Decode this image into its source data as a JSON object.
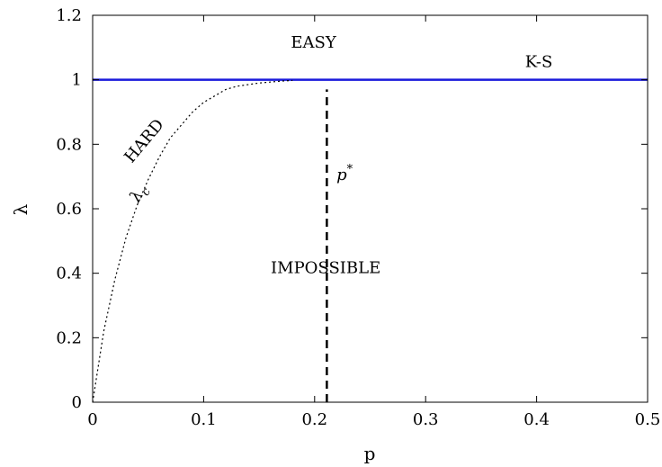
{
  "chart_data": {
    "type": "line",
    "title": "",
    "xlabel": "p",
    "ylabel": "λ",
    "xlim": [
      0,
      0.5
    ],
    "ylim": [
      0,
      1.2
    ],
    "x_ticks": [
      0,
      0.1,
      0.2,
      0.3,
      0.4,
      0.5
    ],
    "x_tick_labels": [
      "0",
      "0.1",
      "0.2",
      "0.3",
      "0.4",
      "0.5"
    ],
    "y_ticks": [
      0,
      0.2,
      0.4,
      0.6,
      0.8,
      1,
      1.2
    ],
    "y_tick_labels": [
      "0",
      "0.2",
      "0.4",
      "0.6",
      "0.8",
      "1",
      "1.2"
    ],
    "grid": false,
    "series": [
      {
        "name": "K-S",
        "style": "solid",
        "color": "#1a1adb",
        "x": [
          0,
          0.5
        ],
        "y": [
          1,
          1
        ]
      },
      {
        "name": "λc",
        "style": "dotted",
        "color": "#000000",
        "x": [
          0,
          0.01,
          0.02,
          0.03,
          0.04,
          0.05,
          0.06,
          0.07,
          0.08,
          0.09,
          0.1,
          0.11,
          0.12,
          0.13,
          0.14,
          0.15,
          0.16,
          0.17,
          0.18
        ],
        "y": [
          0,
          0.22,
          0.38,
          0.51,
          0.61,
          0.69,
          0.76,
          0.82,
          0.86,
          0.9,
          0.93,
          0.95,
          0.97,
          0.98,
          0.985,
          0.99,
          0.993,
          0.996,
          0.998
        ]
      },
      {
        "name": "p*",
        "style": "dashed",
        "color": "#000000",
        "x": [
          0.211,
          0.211
        ],
        "y": [
          0,
          0.97
        ]
      }
    ],
    "annotations": [
      {
        "key": "easy",
        "text": "EASY",
        "x": 0.199,
        "y": 1.1
      },
      {
        "key": "ks",
        "text": "K-S",
        "x": 0.402,
        "y": 1.04
      },
      {
        "key": "impossible",
        "text": "IMPOSSIBLE",
        "x": 0.21,
        "y": 0.4
      },
      {
        "key": "hard",
        "text": "HARD",
        "x": 0.05,
        "y": 0.8,
        "rotate": -50
      },
      {
        "key": "lambda-c",
        "text": "λ",
        "subscript": "c",
        "x": 0.045,
        "y": 0.64,
        "rotate": -60
      },
      {
        "key": "p-star",
        "text": "p",
        "superscript": "*",
        "x": 0.227,
        "y": 0.69
      }
    ]
  }
}
